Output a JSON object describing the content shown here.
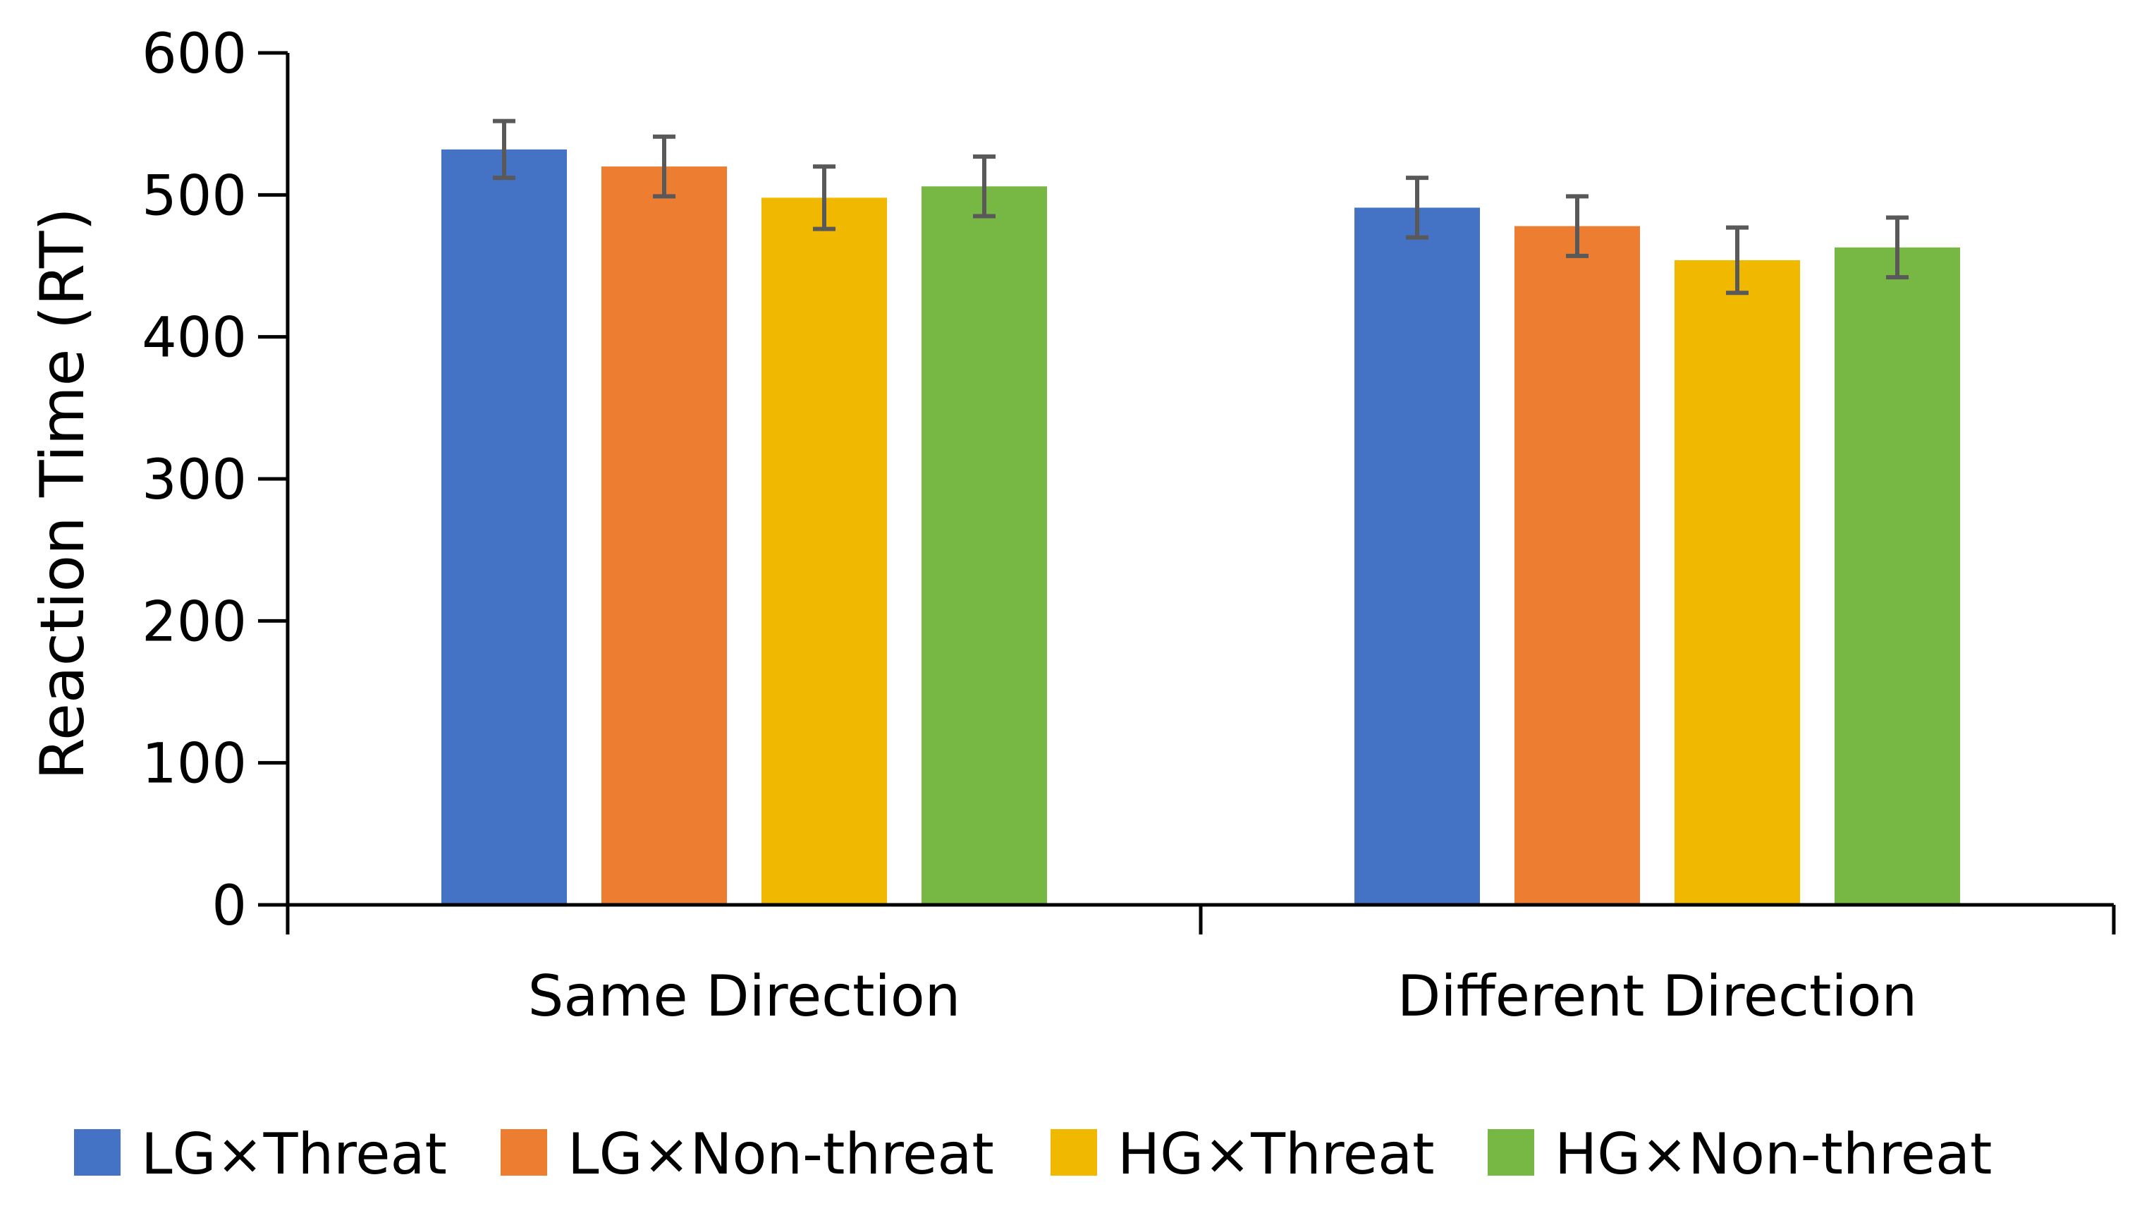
{
  "chart_data": {
    "type": "bar",
    "title": "",
    "xlabel": "",
    "ylabel": "Reaction Time (RT)",
    "ylim": [
      0,
      600
    ],
    "yticks": [
      0,
      100,
      200,
      300,
      400,
      500,
      600
    ],
    "ytick_labels": [
      "0",
      "100",
      "200",
      "300",
      "400",
      "500",
      "600"
    ],
    "grid": false,
    "legend_position": "bottom",
    "categories": [
      "Same Direction",
      "Different Direction"
    ],
    "series": [
      {
        "name": "LG×Threat",
        "color": "#4472C4",
        "values": [
          532,
          491
        ],
        "errors": [
          20,
          21
        ]
      },
      {
        "name": "LG×Non-threat",
        "color": "#ED7D31",
        "values": [
          520,
          478
        ],
        "errors": [
          21,
          21
        ]
      },
      {
        "name": "HG×Threat",
        "color": "#F1B800",
        "values": [
          498,
          454
        ],
        "errors": [
          22,
          23
        ]
      },
      {
        "name": "HG×Non-threat",
        "color": "#76B843",
        "values": [
          506,
          463
        ],
        "errors": [
          21,
          21
        ]
      }
    ],
    "error_bar_color": "#595959"
  }
}
